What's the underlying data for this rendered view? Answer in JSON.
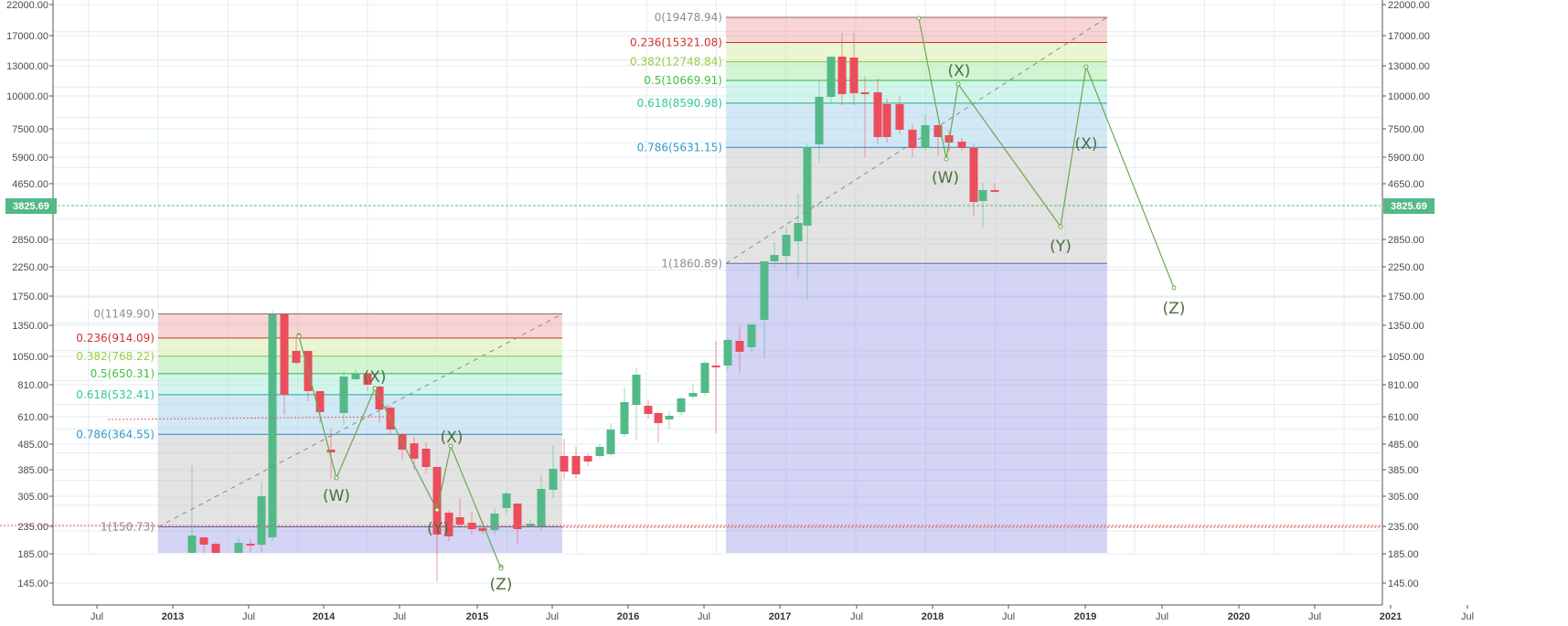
{
  "chart_data": {
    "type": "candlestick",
    "title": "",
    "scale": "log",
    "xlabel": "",
    "ylabel": "",
    "ylim": [
      120,
      22000
    ],
    "grid": true,
    "y_ticks": [
      "22000.00",
      "17000.00",
      "13000.00",
      "10000.00",
      "7500.00",
      "5900.00",
      "4650.00",
      "2850.00",
      "2250.00",
      "1750.00",
      "1350.00",
      "1050.00",
      "810.00",
      "610.00",
      "485.00",
      "385.00",
      "305.00",
      "235.00",
      "185.00",
      "145.00"
    ],
    "x_ticks": [
      {
        "label": "Jul",
        "year": false
      },
      {
        "label": "2013",
        "year": true
      },
      {
        "label": "Jul",
        "year": false
      },
      {
        "label": "2014",
        "year": true
      },
      {
        "label": "Jul",
        "year": false
      },
      {
        "label": "2015",
        "year": true
      },
      {
        "label": "Jul",
        "year": false
      },
      {
        "label": "2016",
        "year": true
      },
      {
        "label": "Jul",
        "year": false
      },
      {
        "label": "2017",
        "year": true
      },
      {
        "label": "Jul",
        "year": false
      },
      {
        "label": "2018",
        "year": true
      },
      {
        "label": "Jul",
        "year": false
      },
      {
        "label": "2019",
        "year": true
      },
      {
        "label": "Jul",
        "year": false
      },
      {
        "label": "2020",
        "year": true
      },
      {
        "label": "Jul",
        "year": false
      },
      {
        "label": "2021",
        "year": true
      },
      {
        "label": "Jul",
        "year": false
      }
    ],
    "current_price": "3825.69",
    "colors": {
      "up": "#53b987",
      "down": "#eb4d5c",
      "grid": "#e1ecf2",
      "axis": "#555555",
      "price_tag": "#53b987",
      "wave_line": "#6aa84f",
      "trend_dashed": "#888888",
      "support_dotted": "#f05a5a"
    },
    "fib_retracements": [
      {
        "name": "fib-2013-2015",
        "levels": [
          {
            "ratio": "0",
            "price": "1149.90",
            "label": "0(1149.90)",
            "color": "#8c8c8c",
            "line": "#8b6b6b"
          },
          {
            "ratio": "0.236",
            "price": "914.09",
            "label": "0.236(914.09)",
            "color": "#d32f2f",
            "line": "#c0392b"
          },
          {
            "ratio": "0.382",
            "price": "768.22",
            "label": "0.382(768.22)",
            "color": "#9ccc3c",
            "line": "#8bc34a"
          },
          {
            "ratio": "0.5",
            "price": "650.31",
            "label": "0.5(650.31)",
            "color": "#43c043",
            "line": "#2eb82e"
          },
          {
            "ratio": "0.618",
            "price": "532.41",
            "label": "0.618(532.41)",
            "color": "#2fc8a0",
            "line": "#26a69a"
          },
          {
            "ratio": "0.786",
            "price": "364.55",
            "label": "0.786(364.55)",
            "color": "#3399cc",
            "line": "#2e86c1"
          },
          {
            "ratio": "1",
            "price": "150.73",
            "label": "1(150.73)",
            "color": "#8c8c8c",
            "line": "#666699"
          }
        ]
      },
      {
        "name": "fib-2017-2019",
        "levels": [
          {
            "ratio": "0",
            "price": "19478.94",
            "label": "0(19478.94)",
            "color": "#8c8c8c",
            "line": "#8b6b6b"
          },
          {
            "ratio": "0.236",
            "price": "15321.08",
            "label": "0.236(15321.08)",
            "color": "#d32f2f",
            "line": "#c0392b"
          },
          {
            "ratio": "0.382",
            "price": "12748.84",
            "label": "0.382(12748.84)",
            "color": "#9ccc3c",
            "line": "#8bc34a"
          },
          {
            "ratio": "0.5",
            "price": "10669.91",
            "label": "0.5(10669.91)",
            "color": "#43c043",
            "line": "#2eb82e"
          },
          {
            "ratio": "0.618",
            "price": "8590.98",
            "label": "0.618(8590.98)",
            "color": "#2fc8a0",
            "line": "#26a69a"
          },
          {
            "ratio": "0.786",
            "price": "5631.15",
            "label": "0.786(5631.15)",
            "color": "#3399cc",
            "line": "#2e86c1"
          },
          {
            "ratio": "1",
            "price": "1860.89",
            "label": "1(1860.89)",
            "color": "#8c8c8c",
            "line": "#666699"
          }
        ]
      }
    ],
    "elliott_waves": [
      {
        "name": "wave-2013-2015",
        "labels": [
          "(W)",
          "(X)",
          "(Y)",
          "(X)",
          "(Z)"
        ]
      },
      {
        "name": "wave-2017-2019",
        "labels": [
          "(W)",
          "(X)",
          "(Y)",
          "(X)",
          "(Z)"
        ]
      }
    ]
  }
}
